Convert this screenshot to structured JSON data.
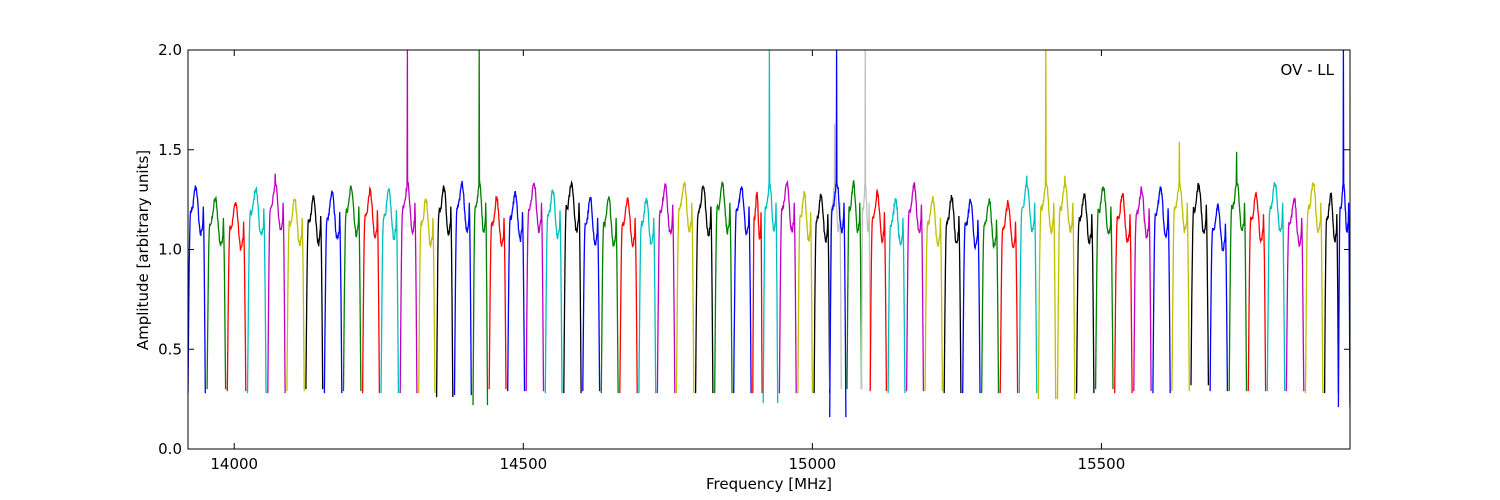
{
  "chart_data": {
    "type": "line",
    "title": "",
    "annotation": "OV - LL",
    "xlabel": "Frequency [MHz]",
    "ylabel": "Amplitude [arbitrary units]",
    "xlim": [
      13920,
      15930
    ],
    "ylim": [
      0.0,
      2.0
    ],
    "grid": false,
    "legend": "none",
    "xticks": [
      14000,
      14500,
      15000,
      15500
    ],
    "xtick_labels": [
      "14000",
      "14500",
      "15000",
      "15500"
    ],
    "yticks": [
      0.0,
      0.5,
      1.0,
      1.5,
      2.0
    ],
    "ytick_labels": [
      "0.0",
      "0.5",
      "1.0",
      "1.5",
      "2.0"
    ],
    "color_cycle": [
      "#0000ff",
      "#008000",
      "#ff0000",
      "#00bfbf",
      "#bf00bf",
      "#bfbf00",
      "#000000"
    ],
    "special_color": "#c0c0c0",
    "subbands": [
      {
        "start": 13920,
        "end": 13950,
        "low": 0.28,
        "high": 1.28,
        "color": "#0000ff"
      },
      {
        "start": 13953,
        "end": 13985,
        "low": 0.3,
        "high": 1.22,
        "color": "#008000"
      },
      {
        "start": 13988,
        "end": 14020,
        "low": 0.29,
        "high": 1.2,
        "color": "#ff0000"
      },
      {
        "start": 14023,
        "end": 14055,
        "low": 0.28,
        "high": 1.27,
        "color": "#00bfbf"
      },
      {
        "start": 14058,
        "end": 14088,
        "low": 0.28,
        "high": 1.38,
        "color": "#bf00bf"
      },
      {
        "start": 14091,
        "end": 14121,
        "low": 0.29,
        "high": 1.22,
        "color": "#bfbf00"
      },
      {
        "start": 14124,
        "end": 14153,
        "low": 0.3,
        "high": 1.23,
        "color": "#000000"
      },
      {
        "start": 14156,
        "end": 14186,
        "low": 0.28,
        "high": 1.25,
        "color": "#0000ff"
      },
      {
        "start": 14189,
        "end": 14219,
        "low": 0.29,
        "high": 1.28,
        "color": "#008000"
      },
      {
        "start": 14222,
        "end": 14251,
        "low": 0.28,
        "high": 1.26,
        "color": "#ff0000"
      },
      {
        "start": 14254,
        "end": 14284,
        "low": 0.28,
        "high": 1.26,
        "color": "#00bfbf"
      },
      {
        "start": 14287,
        "end": 14316,
        "low": 0.28,
        "high": 2.0,
        "color": "#bf00bf"
      },
      {
        "start": 14319,
        "end": 14347,
        "low": 0.28,
        "high": 1.22,
        "color": "#bfbf00"
      },
      {
        "start": 14350,
        "end": 14378,
        "low": 0.26,
        "high": 1.28,
        "color": "#000000"
      },
      {
        "start": 14381,
        "end": 14410,
        "low": 0.27,
        "high": 1.31,
        "color": "#0000ff"
      },
      {
        "start": 14413,
        "end": 14438,
        "low": 0.22,
        "high": 2.0,
        "color": "#008000"
      },
      {
        "start": 14441,
        "end": 14470,
        "low": 0.3,
        "high": 1.22,
        "color": "#ff0000"
      },
      {
        "start": 14473,
        "end": 14502,
        "low": 0.29,
        "high": 1.25,
        "color": "#0000ff"
      },
      {
        "start": 14505,
        "end": 14535,
        "low": 0.29,
        "high": 1.35,
        "color": "#bf00bf"
      },
      {
        "start": 14538,
        "end": 14567,
        "low": 0.28,
        "high": 1.26,
        "color": "#00bfbf"
      },
      {
        "start": 14570,
        "end": 14600,
        "low": 0.28,
        "high": 1.31,
        "color": "#000000"
      },
      {
        "start": 14603,
        "end": 14632,
        "low": 0.29,
        "high": 1.22,
        "color": "#0000ff"
      },
      {
        "start": 14635,
        "end": 14664,
        "low": 0.28,
        "high": 1.22,
        "color": "#008000"
      },
      {
        "start": 14667,
        "end": 14697,
        "low": 0.28,
        "high": 1.22,
        "color": "#ff0000"
      },
      {
        "start": 14700,
        "end": 14729,
        "low": 0.28,
        "high": 1.22,
        "color": "#00bfbf"
      },
      {
        "start": 14732,
        "end": 14762,
        "low": 0.28,
        "high": 1.29,
        "color": "#bf00bf"
      },
      {
        "start": 14765,
        "end": 14795,
        "low": 0.28,
        "high": 1.3,
        "color": "#bfbf00"
      },
      {
        "start": 14798,
        "end": 14828,
        "low": 0.28,
        "high": 1.28,
        "color": "#000000"
      },
      {
        "start": 14831,
        "end": 14861,
        "low": 0.28,
        "high": 1.32,
        "color": "#008000"
      },
      {
        "start": 14864,
        "end": 14894,
        "low": 0.28,
        "high": 1.28,
        "color": "#0000ff"
      },
      {
        "start": 14897,
        "end": 14913,
        "low": 0.28,
        "high": 1.25,
        "color": "#ff0000"
      },
      {
        "start": 14915,
        "end": 14940,
        "low": 0.23,
        "high": 2.0,
        "color": "#00bfbf"
      },
      {
        "start": 14943,
        "end": 14972,
        "low": 0.28,
        "high": 1.35,
        "color": "#bf00bf"
      },
      {
        "start": 14975,
        "end": 15000,
        "low": 0.28,
        "high": 1.25,
        "color": "#bfbf00"
      },
      {
        "start": 15003,
        "end": 15030,
        "low": 0.28,
        "high": 1.24,
        "color": "#000000"
      },
      {
        "start": 15030,
        "end": 15050,
        "low": 0.3,
        "high": 1.63,
        "color": "#c0c0c0"
      },
      {
        "start": 15030,
        "end": 15058,
        "low": 0.16,
        "high": 2.0,
        "color": "#0000ff"
      },
      {
        "start": 15060,
        "end": 15085,
        "low": 0.3,
        "high": 1.35,
        "color": "#008000"
      },
      {
        "start": 15085,
        "end": 15100,
        "low": 0.3,
        "high": 2.0,
        "color": "#c0c0c0"
      },
      {
        "start": 15100,
        "end": 15128,
        "low": 0.29,
        "high": 1.25,
        "color": "#ff0000"
      },
      {
        "start": 15131,
        "end": 15160,
        "low": 0.28,
        "high": 1.22,
        "color": "#00bfbf"
      },
      {
        "start": 15163,
        "end": 15192,
        "low": 0.29,
        "high": 1.29,
        "color": "#bf00bf"
      },
      {
        "start": 15195,
        "end": 15225,
        "low": 0.29,
        "high": 1.22,
        "color": "#bfbf00"
      },
      {
        "start": 15228,
        "end": 15257,
        "low": 0.28,
        "high": 1.23,
        "color": "#000000"
      },
      {
        "start": 15260,
        "end": 15290,
        "low": 0.28,
        "high": 1.21,
        "color": "#0000ff"
      },
      {
        "start": 15293,
        "end": 15322,
        "low": 0.28,
        "high": 1.21,
        "color": "#008000"
      },
      {
        "start": 15325,
        "end": 15355,
        "low": 0.28,
        "high": 1.2,
        "color": "#ff0000"
      },
      {
        "start": 15358,
        "end": 15388,
        "low": 0.28,
        "high": 1.37,
        "color": "#00bfbf"
      },
      {
        "start": 15391,
        "end": 15421,
        "low": 0.25,
        "high": 2.0,
        "color": "#bfbf00"
      },
      {
        "start": 15424,
        "end": 15454,
        "low": 0.25,
        "high": 1.37,
        "color": "#bfbf00"
      },
      {
        "start": 15457,
        "end": 15487,
        "low": 0.28,
        "high": 1.24,
        "color": "#000000"
      },
      {
        "start": 15490,
        "end": 15520,
        "low": 0.3,
        "high": 1.28,
        "color": "#008000"
      },
      {
        "start": 15523,
        "end": 15553,
        "low": 0.28,
        "high": 1.24,
        "color": "#ff0000"
      },
      {
        "start": 15556,
        "end": 15586,
        "low": 0.29,
        "high": 1.27,
        "color": "#bf00bf"
      },
      {
        "start": 15589,
        "end": 15619,
        "low": 0.28,
        "high": 1.27,
        "color": "#0000ff"
      },
      {
        "start": 15622,
        "end": 15652,
        "low": 0.29,
        "high": 1.54,
        "color": "#bfbf00"
      },
      {
        "start": 15655,
        "end": 15685,
        "low": 0.32,
        "high": 1.29,
        "color": "#000000"
      },
      {
        "start": 15688,
        "end": 15718,
        "low": 0.29,
        "high": 1.19,
        "color": "#0000ff"
      },
      {
        "start": 15721,
        "end": 15751,
        "low": 0.29,
        "high": 1.49,
        "color": "#008000"
      },
      {
        "start": 15754,
        "end": 15784,
        "low": 0.29,
        "high": 1.24,
        "color": "#ff0000"
      },
      {
        "start": 15787,
        "end": 15817,
        "low": 0.29,
        "high": 1.3,
        "color": "#00bfbf"
      },
      {
        "start": 15820,
        "end": 15850,
        "low": 0.29,
        "high": 1.22,
        "color": "#bf00bf"
      },
      {
        "start": 15853,
        "end": 15883,
        "low": 0.28,
        "high": 1.3,
        "color": "#bfbf00"
      },
      {
        "start": 15886,
        "end": 15910,
        "low": 0.28,
        "high": 1.24,
        "color": "#000000"
      },
      {
        "start": 15910,
        "end": 15930,
        "low": 0.21,
        "high": 2.0,
        "color": "#0000ff"
      }
    ]
  }
}
